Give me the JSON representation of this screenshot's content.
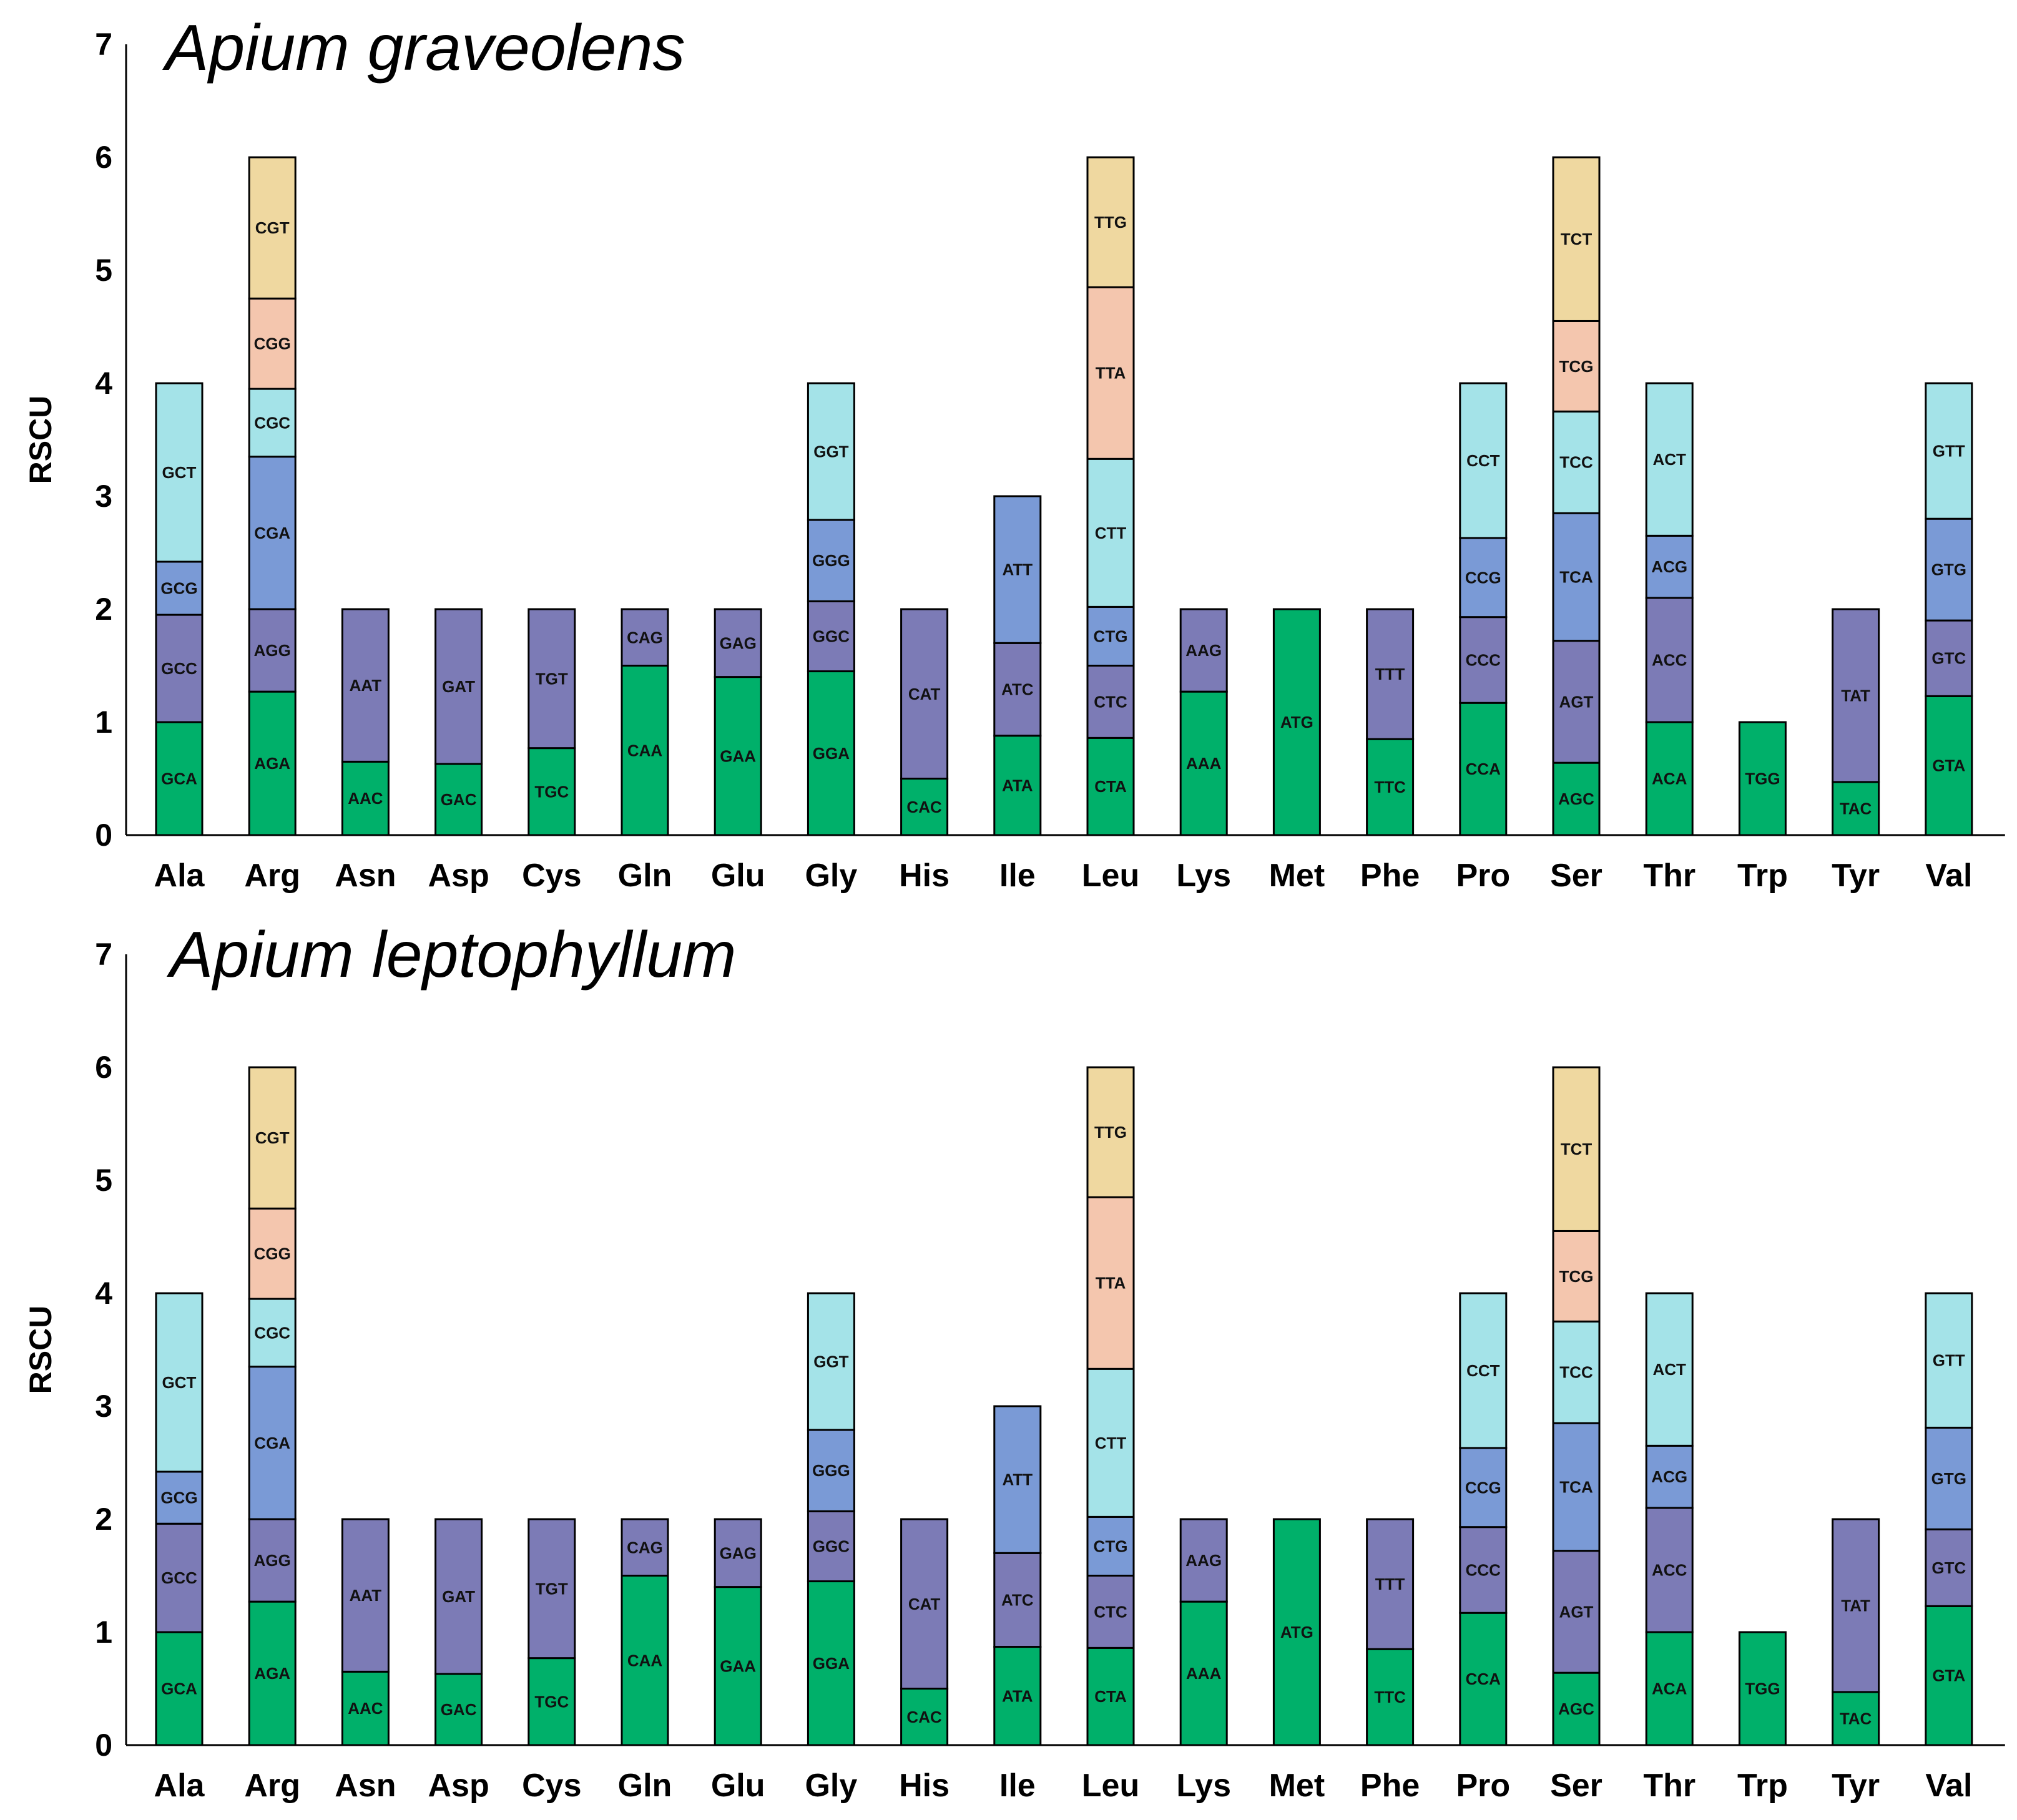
{
  "colors": {
    "c1": "#00b06a",
    "c2": "#7c7bb6",
    "c3": "#7a9ad6",
    "c4": "#a4e3e8",
    "c5": "#f4c6ae",
    "c6": "#efd8a0"
  },
  "chart_data": [
    {
      "type": "bar",
      "stacked": true,
      "title": "Apium graveolens",
      "xlabel": "",
      "ylabel": "RSCU",
      "ylim": [
        0,
        7
      ],
      "yticks": [
        "0",
        "1",
        "2",
        "3",
        "4",
        "5",
        "6",
        "7"
      ],
      "categories": [
        "Ala",
        "Arg",
        "Asn",
        "Asp",
        "Cys",
        "Gln",
        "Glu",
        "Gly",
        "His",
        "Ile",
        "Leu",
        "Lys",
        "Met",
        "Phe",
        "Pro",
        "Ser",
        "Thr",
        "Trp",
        "Tyr",
        "Val"
      ],
      "stacks": [
        [
          {
            "codon": "GCA",
            "value": 1.0
          },
          {
            "codon": "GCC",
            "value": 0.95
          },
          {
            "codon": "GCG",
            "value": 0.47
          },
          {
            "codon": "GCT",
            "value": 1.58
          }
        ],
        [
          {
            "codon": "AGA",
            "value": 1.27
          },
          {
            "codon": "AGG",
            "value": 0.73
          },
          {
            "codon": "CGA",
            "value": 1.35
          },
          {
            "codon": "CGC",
            "value": 0.6
          },
          {
            "codon": "CGG",
            "value": 0.8
          },
          {
            "codon": "CGT",
            "value": 1.25
          }
        ],
        [
          {
            "codon": "AAC",
            "value": 0.65
          },
          {
            "codon": "AAT",
            "value": 1.35
          }
        ],
        [
          {
            "codon": "GAC",
            "value": 0.63
          },
          {
            "codon": "GAT",
            "value": 1.37
          }
        ],
        [
          {
            "codon": "TGC",
            "value": 0.77
          },
          {
            "codon": "TGT",
            "value": 1.23
          }
        ],
        [
          {
            "codon": "CAA",
            "value": 1.5
          },
          {
            "codon": "CAG",
            "value": 0.5
          }
        ],
        [
          {
            "codon": "GAA",
            "value": 1.4
          },
          {
            "codon": "GAG",
            "value": 0.6
          }
        ],
        [
          {
            "codon": "GGA",
            "value": 1.45
          },
          {
            "codon": "GGC",
            "value": 0.62
          },
          {
            "codon": "GGG",
            "value": 0.72
          },
          {
            "codon": "GGT",
            "value": 1.21
          }
        ],
        [
          {
            "codon": "CAC",
            "value": 0.5
          },
          {
            "codon": "CAT",
            "value": 1.5
          }
        ],
        [
          {
            "codon": "ATA",
            "value": 0.88
          },
          {
            "codon": "ATC",
            "value": 0.82
          },
          {
            "codon": "ATT",
            "value": 1.3
          }
        ],
        [
          {
            "codon": "CTA",
            "value": 0.86
          },
          {
            "codon": "CTC",
            "value": 0.64
          },
          {
            "codon": "CTG",
            "value": 0.52
          },
          {
            "codon": "CTT",
            "value": 1.31
          },
          {
            "codon": "TTA",
            "value": 1.52
          },
          {
            "codon": "TTG",
            "value": 1.15
          }
        ],
        [
          {
            "codon": "AAA",
            "value": 1.27
          },
          {
            "codon": "AAG",
            "value": 0.73
          }
        ],
        [
          {
            "codon": "ATG",
            "value": 2.0
          }
        ],
        [
          {
            "codon": "TTC",
            "value": 0.85
          },
          {
            "codon": "TTT",
            "value": 1.15
          }
        ],
        [
          {
            "codon": "CCA",
            "value": 1.17
          },
          {
            "codon": "CCC",
            "value": 0.76
          },
          {
            "codon": "CCG",
            "value": 0.7
          },
          {
            "codon": "CCT",
            "value": 1.37
          }
        ],
        [
          {
            "codon": "AGC",
            "value": 0.64
          },
          {
            "codon": "AGT",
            "value": 1.08
          },
          {
            "codon": "TCA",
            "value": 1.13
          },
          {
            "codon": "TCC",
            "value": 0.9
          },
          {
            "codon": "TCG",
            "value": 0.8
          },
          {
            "codon": "TCT",
            "value": 1.45
          }
        ],
        [
          {
            "codon": "ACA",
            "value": 1.0
          },
          {
            "codon": "ACC",
            "value": 1.1
          },
          {
            "codon": "ACG",
            "value": 0.55
          },
          {
            "codon": "ACT",
            "value": 1.35
          }
        ],
        [
          {
            "codon": "TGG",
            "value": 1.0
          }
        ],
        [
          {
            "codon": "TAC",
            "value": 0.47
          },
          {
            "codon": "TAT",
            "value": 1.53
          }
        ],
        [
          {
            "codon": "GTA",
            "value": 1.23
          },
          {
            "codon": "GTC",
            "value": 0.67
          },
          {
            "codon": "GTG",
            "value": 0.9
          },
          {
            "codon": "GTT",
            "value": 1.2
          }
        ]
      ]
    },
    {
      "type": "bar",
      "stacked": true,
      "title": "Apium leptophyllum",
      "xlabel": "",
      "ylabel": "RSCU",
      "ylim": [
        0,
        7
      ],
      "yticks": [
        "0",
        "1",
        "2",
        "3",
        "4",
        "5",
        "6",
        "7"
      ],
      "categories": [
        "Ala",
        "Arg",
        "Asn",
        "Asp",
        "Cys",
        "Gln",
        "Glu",
        "Gly",
        "His",
        "Ile",
        "Leu",
        "Lys",
        "Met",
        "Phe",
        "Pro",
        "Ser",
        "Thr",
        "Trp",
        "Tyr",
        "Val"
      ],
      "stacks": [
        [
          {
            "codon": "GCA",
            "value": 1.0
          },
          {
            "codon": "GCC",
            "value": 0.96
          },
          {
            "codon": "GCG",
            "value": 0.46
          },
          {
            "codon": "GCT",
            "value": 1.58
          }
        ],
        [
          {
            "codon": "AGA",
            "value": 1.27
          },
          {
            "codon": "AGG",
            "value": 0.73
          },
          {
            "codon": "CGA",
            "value": 1.35
          },
          {
            "codon": "CGC",
            "value": 0.6
          },
          {
            "codon": "CGG",
            "value": 0.8
          },
          {
            "codon": "CGT",
            "value": 1.25
          }
        ],
        [
          {
            "codon": "AAC",
            "value": 0.65
          },
          {
            "codon": "AAT",
            "value": 1.35
          }
        ],
        [
          {
            "codon": "GAC",
            "value": 0.63
          },
          {
            "codon": "GAT",
            "value": 1.37
          }
        ],
        [
          {
            "codon": "TGC",
            "value": 0.77
          },
          {
            "codon": "TGT",
            "value": 1.23
          }
        ],
        [
          {
            "codon": "CAA",
            "value": 1.5
          },
          {
            "codon": "CAG",
            "value": 0.5
          }
        ],
        [
          {
            "codon": "GAA",
            "value": 1.4
          },
          {
            "codon": "GAG",
            "value": 0.6
          }
        ],
        [
          {
            "codon": "GGA",
            "value": 1.45
          },
          {
            "codon": "GGC",
            "value": 0.62
          },
          {
            "codon": "GGG",
            "value": 0.72
          },
          {
            "codon": "GGT",
            "value": 1.21
          }
        ],
        [
          {
            "codon": "CAC",
            "value": 0.5
          },
          {
            "codon": "CAT",
            "value": 1.5
          }
        ],
        [
          {
            "codon": "ATA",
            "value": 0.87
          },
          {
            "codon": "ATC",
            "value": 0.83
          },
          {
            "codon": "ATT",
            "value": 1.3
          }
        ],
        [
          {
            "codon": "CTA",
            "value": 0.86
          },
          {
            "codon": "CTC",
            "value": 0.64
          },
          {
            "codon": "CTG",
            "value": 0.52
          },
          {
            "codon": "CTT",
            "value": 1.31
          },
          {
            "codon": "TTA",
            "value": 1.52
          },
          {
            "codon": "TTG",
            "value": 1.15
          }
        ],
        [
          {
            "codon": "AAA",
            "value": 1.27
          },
          {
            "codon": "AAG",
            "value": 0.73
          }
        ],
        [
          {
            "codon": "ATG",
            "value": 2.0
          }
        ],
        [
          {
            "codon": "TTC",
            "value": 0.85
          },
          {
            "codon": "TTT",
            "value": 1.15
          }
        ],
        [
          {
            "codon": "CCA",
            "value": 1.17
          },
          {
            "codon": "CCC",
            "value": 0.76
          },
          {
            "codon": "CCG",
            "value": 0.7
          },
          {
            "codon": "CCT",
            "value": 1.37
          }
        ],
        [
          {
            "codon": "AGC",
            "value": 0.64
          },
          {
            "codon": "AGT",
            "value": 1.08
          },
          {
            "codon": "TCA",
            "value": 1.13
          },
          {
            "codon": "TCC",
            "value": 0.9
          },
          {
            "codon": "TCG",
            "value": 0.8
          },
          {
            "codon": "TCT",
            "value": 1.45
          }
        ],
        [
          {
            "codon": "ACA",
            "value": 1.0
          },
          {
            "codon": "ACC",
            "value": 1.1
          },
          {
            "codon": "ACG",
            "value": 0.55
          },
          {
            "codon": "ACT",
            "value": 1.35
          }
        ],
        [
          {
            "codon": "TGG",
            "value": 1.0
          }
        ],
        [
          {
            "codon": "TAC",
            "value": 0.47
          },
          {
            "codon": "TAT",
            "value": 1.53
          }
        ],
        [
          {
            "codon": "GTA",
            "value": 1.23
          },
          {
            "codon": "GTC",
            "value": 0.68
          },
          {
            "codon": "GTG",
            "value": 0.9
          },
          {
            "codon": "GTT",
            "value": 1.19
          }
        ]
      ]
    }
  ]
}
